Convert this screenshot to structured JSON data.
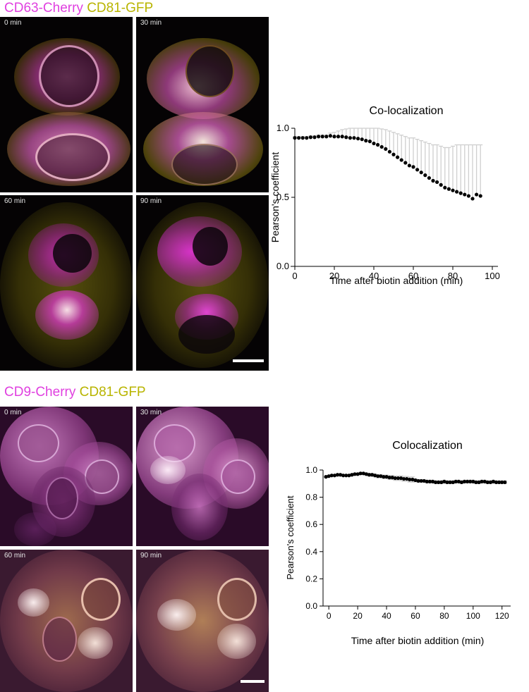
{
  "figure_top": {
    "label_parts": [
      "CD63-Cherry",
      "CD81-GFP"
    ],
    "time_labels": [
      "0 min",
      "30 min",
      "60 min",
      "90 min"
    ]
  },
  "figure_bottom": {
    "label_parts": [
      "CD9-Cherry",
      "CD81-GFP"
    ],
    "time_labels": [
      "0 min",
      "30 min",
      "60 min",
      "90 min"
    ]
  },
  "colors": {
    "magenta": "#e040e0",
    "olive": "#b8b400",
    "error_bar": "#cfcfcf",
    "point": "#000000"
  },
  "chart_data": [
    {
      "type": "scatter",
      "title": "Co-localization",
      "xlabel": "Time after biotin addition (min)",
      "ylabel": "Pearson's coefficient",
      "xlim": [
        0,
        100
      ],
      "ylim": [
        0.0,
        1.0
      ],
      "xticks": [
        "0",
        "20",
        "40",
        "60",
        "80",
        "100"
      ],
      "yticks": [
        "0.0",
        "0.5",
        "1.0"
      ],
      "error_bars": "upper",
      "x": [
        0,
        2,
        4,
        6,
        8,
        10,
        12,
        14,
        16,
        18,
        20,
        22,
        24,
        26,
        28,
        30,
        32,
        34,
        36,
        38,
        40,
        42,
        44,
        46,
        48,
        50,
        52,
        54,
        56,
        58,
        60,
        62,
        64,
        66,
        68,
        70,
        72,
        74,
        76,
        78,
        80,
        82,
        84,
        86,
        88,
        90,
        92,
        94
      ],
      "values": [
        0.93,
        0.93,
        0.93,
        0.93,
        0.935,
        0.935,
        0.94,
        0.94,
        0.94,
        0.945,
        0.94,
        0.94,
        0.94,
        0.935,
        0.93,
        0.93,
        0.925,
        0.92,
        0.91,
        0.905,
        0.89,
        0.88,
        0.865,
        0.85,
        0.83,
        0.81,
        0.79,
        0.77,
        0.75,
        0.73,
        0.72,
        0.7,
        0.68,
        0.66,
        0.64,
        0.62,
        0.61,
        0.59,
        0.57,
        0.56,
        0.55,
        0.54,
        0.53,
        0.52,
        0.51,
        0.49,
        0.52,
        0.51
      ],
      "errors": [
        0.01,
        0.01,
        0.01,
        0.01,
        0.01,
        0.01,
        0.01,
        0.01,
        0.01,
        0.02,
        0.03,
        0.04,
        0.05,
        0.06,
        0.07,
        0.07,
        0.08,
        0.08,
        0.09,
        0.1,
        0.11,
        0.12,
        0.13,
        0.14,
        0.15,
        0.16,
        0.17,
        0.18,
        0.19,
        0.2,
        0.21,
        0.22,
        0.23,
        0.24,
        0.25,
        0.26,
        0.27,
        0.28,
        0.29,
        0.3,
        0.32,
        0.34,
        0.35,
        0.36,
        0.37,
        0.39,
        0.36,
        0.37
      ]
    },
    {
      "type": "scatter",
      "title": "Colocalization",
      "xlabel": "Time after biotin addition (min)",
      "ylabel": "Pearson's coefficient",
      "xlim": [
        -4,
        126
      ],
      "ylim": [
        0.0,
        1.0
      ],
      "xticks": [
        "0",
        "20",
        "40",
        "60",
        "80",
        "100",
        "120"
      ],
      "yticks": [
        "0.0",
        "0.2",
        "0.4",
        "0.6",
        "0.8",
        "1.0"
      ],
      "error_bars": "both",
      "x": [
        -2,
        0,
        2,
        4,
        6,
        8,
        10,
        12,
        14,
        16,
        18,
        20,
        22,
        24,
        26,
        28,
        30,
        32,
        34,
        36,
        38,
        40,
        42,
        44,
        46,
        48,
        50,
        52,
        54,
        56,
        58,
        60,
        62,
        64,
        66,
        68,
        70,
        72,
        74,
        76,
        78,
        80,
        82,
        84,
        86,
        88,
        90,
        92,
        94,
        96,
        98,
        100,
        102,
        104,
        106,
        108,
        110,
        112,
        114,
        116,
        118,
        120,
        122
      ],
      "values": [
        0.95,
        0.955,
        0.96,
        0.96,
        0.965,
        0.965,
        0.96,
        0.96,
        0.96,
        0.965,
        0.97,
        0.97,
        0.975,
        0.975,
        0.97,
        0.965,
        0.965,
        0.96,
        0.955,
        0.955,
        0.95,
        0.95,
        0.945,
        0.945,
        0.94,
        0.94,
        0.94,
        0.935,
        0.935,
        0.93,
        0.93,
        0.925,
        0.92,
        0.92,
        0.92,
        0.915,
        0.915,
        0.915,
        0.91,
        0.91,
        0.91,
        0.915,
        0.91,
        0.91,
        0.91,
        0.915,
        0.915,
        0.91,
        0.915,
        0.915,
        0.915,
        0.915,
        0.91,
        0.91,
        0.915,
        0.915,
        0.91,
        0.91,
        0.915,
        0.91,
        0.91,
        0.91,
        0.91
      ],
      "errors": [
        0.005,
        0.005,
        0.005,
        0.005,
        0.005,
        0.006,
        0.006,
        0.006,
        0.006,
        0.007,
        0.007,
        0.008,
        0.008,
        0.008,
        0.009,
        0.01,
        0.01,
        0.011,
        0.012,
        0.012,
        0.013,
        0.013,
        0.014,
        0.015,
        0.016,
        0.016,
        0.017,
        0.018,
        0.018,
        0.019,
        0.02,
        0.01,
        0.01,
        0.01,
        0.01,
        0.01,
        0.01,
        0.01,
        0.01,
        0.01,
        0.01,
        0.01,
        0.01,
        0.01,
        0.01,
        0.01,
        0.01,
        0.01,
        0.01,
        0.01,
        0.01,
        0.01,
        0.01,
        0.01,
        0.01,
        0.01,
        0.01,
        0.01,
        0.01,
        0.01,
        0.01,
        0.01,
        0.01
      ]
    }
  ]
}
